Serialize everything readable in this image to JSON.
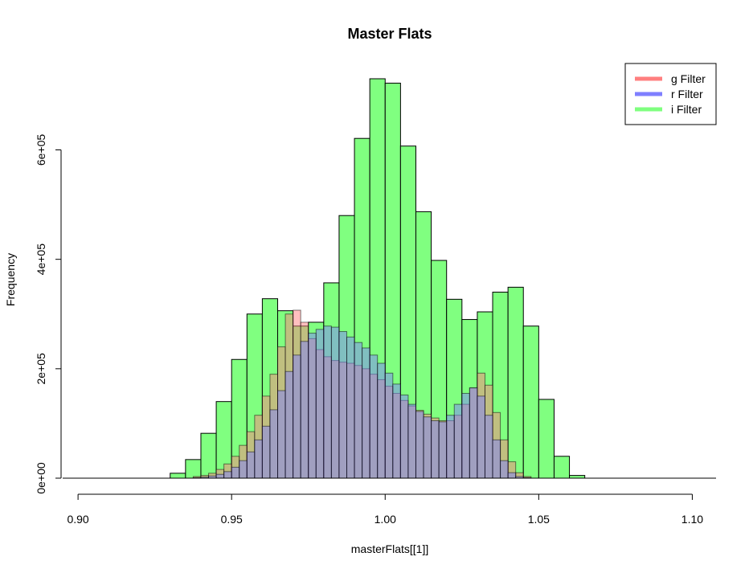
{
  "chart_data": {
    "type": "bar",
    "title": "Master Flats",
    "xlabel": "masterFlats[[1]]",
    "ylabel": "Frequency",
    "xlim": [
      0.895,
      1.108
    ],
    "ylim": [
      0,
      730000
    ],
    "x_ticks": [
      0.9,
      0.95,
      1.0,
      1.05,
      1.1
    ],
    "x_tick_labels": [
      "0.90",
      "0.95",
      "1.00",
      "1.05",
      "1.10"
    ],
    "y_ticks": [
      0,
      200000,
      400000,
      600000
    ],
    "y_tick_labels": [
      "0e+00",
      "2e+05",
      "4e+05",
      "6e+05"
    ],
    "legend": {
      "position": "top-right",
      "entries": [
        {
          "label": "g Filter",
          "color": "#ff7f7f"
        },
        {
          "label": "r Filter",
          "color": "#7f7fff"
        },
        {
          "label": "i Filter",
          "color": "#7fff7f"
        }
      ]
    },
    "series": [
      {
        "name": "i Filter",
        "color": "#80ff80",
        "bin_start": 0.93,
        "bin_width": 0.005,
        "values": [
          9000,
          34000,
          82000,
          140000,
          217000,
          300000,
          328000,
          306000,
          278000,
          285000,
          357000,
          480000,
          621000,
          730000,
          722000,
          607000,
          487000,
          398000,
          327000,
          290000,
          304000,
          340000,
          349000,
          278000,
          144000,
          40000,
          5000
        ]
      },
      {
        "name": "g Filter",
        "color": "#ff7f7f",
        "bin_start": 0.9375,
        "bin_width": 0.0025,
        "values": [
          3000,
          5000,
          9000,
          16000,
          26000,
          40000,
          60000,
          85000,
          115000,
          150000,
          190000,
          240000,
          300000,
          307000,
          285000,
          255000,
          235000,
          222000,
          215000,
          212000,
          210000,
          206000,
          200000,
          190000,
          180000,
          168000,
          155000,
          142000,
          132000,
          124000,
          117000,
          110000,
          105000,
          105000,
          115000,
          135000,
          165000,
          192000,
          170000,
          120000,
          70000,
          30000,
          10000,
          3000
        ]
      },
      {
        "name": "r Filter",
        "color": "#7f7fff",
        "bin_start": 0.9375,
        "bin_width": 0.0025,
        "values": [
          1000,
          2000,
          4000,
          7000,
          12000,
          20000,
          32000,
          48000,
          70000,
          95000,
          125000,
          160000,
          195000,
          225000,
          250000,
          265000,
          272000,
          278000,
          276000,
          268000,
          258000,
          248000,
          238000,
          225000,
          210000,
          192000,
          172000,
          152000,
          135000,
          122000,
          112000,
          105000,
          103000,
          115000,
          135000,
          155000,
          165000,
          150000,
          115000,
          70000,
          32000,
          10000,
          3000,
          1000
        ]
      }
    ]
  }
}
